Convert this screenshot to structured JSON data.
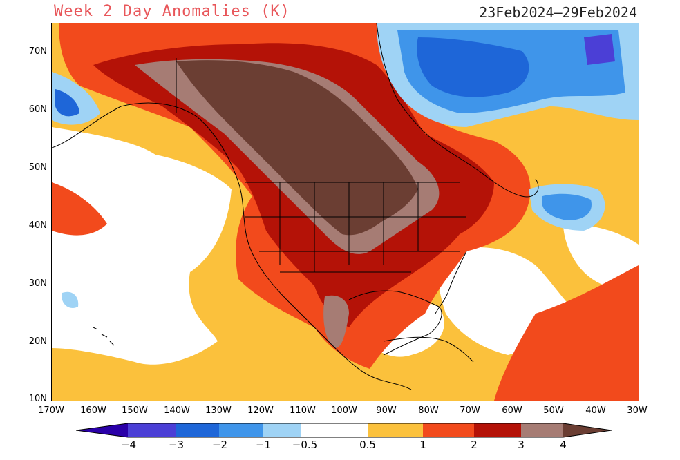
{
  "header": {
    "title": "Week 2 Day Anomalies (K)",
    "date_range": "23Feb2024—29Feb2024"
  },
  "map": {
    "region": "North America",
    "lat_ticks": [
      "70N",
      "60N",
      "50N",
      "40N",
      "30N",
      "20N",
      "10N"
    ],
    "lon_ticks": [
      "170W",
      "160W",
      "150W",
      "140W",
      "130W",
      "120W",
      "110W",
      "100W",
      "90W",
      "80W",
      "70W",
      "60W",
      "50W",
      "40W",
      "30W"
    ]
  },
  "colorbar": {
    "labels": [
      "−4",
      "−3",
      "−2",
      "−1",
      "−0.5",
      "0.5",
      "1",
      "2",
      "3",
      "4"
    ],
    "colors": [
      "#2a00a8",
      "#4b3fd6",
      "#1e66d8",
      "#3f95ea",
      "#9fd3f5",
      "#ffffff",
      "#fbc13c",
      "#f24a1c",
      "#b41207",
      "#a67c74",
      "#6b3e33"
    ]
  }
}
